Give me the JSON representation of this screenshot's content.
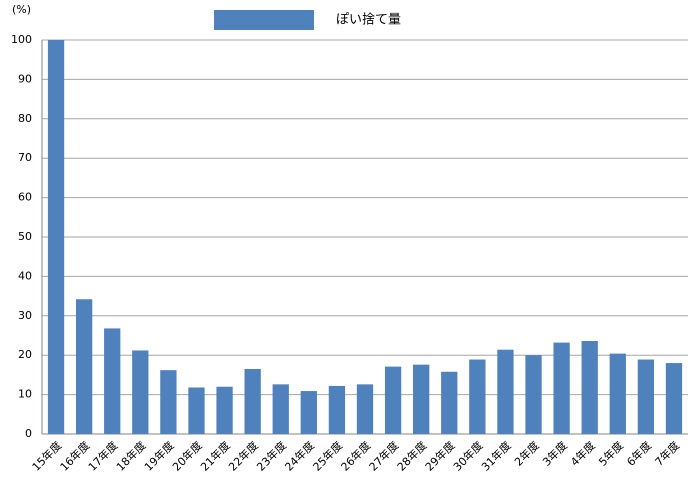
{
  "chart_data": {
    "type": "bar",
    "y_unit": "(%)",
    "categories": [
      "15年度",
      "16年度",
      "17年度",
      "18年度",
      "19年度",
      "20年度",
      "21年度",
      "22年度",
      "23年度",
      "24年度",
      "25年度",
      "26年度",
      "27年度",
      "28年度",
      "29年度",
      "30年度",
      "31年度",
      "2年度",
      "3年度",
      "4年度",
      "5年度",
      "6年度",
      "7年度"
    ],
    "series": [
      {
        "name": "ぽい捨て量",
        "color": "#4f81bd",
        "values": [
          100,
          34.2,
          26.8,
          21.2,
          16.2,
          11.8,
          12,
          16.5,
          12.6,
          10.9,
          12.2,
          12.6,
          17.1,
          17.6,
          15.8,
          18.9,
          21.4,
          20,
          23.2,
          23.6,
          20.4,
          18.9,
          18
        ]
      }
    ],
    "ylim": [
      0,
      100
    ],
    "yticks": [
      0,
      10,
      20,
      30,
      40,
      50,
      60,
      70,
      80,
      90,
      100
    ],
    "grid": true,
    "legend": "top"
  }
}
